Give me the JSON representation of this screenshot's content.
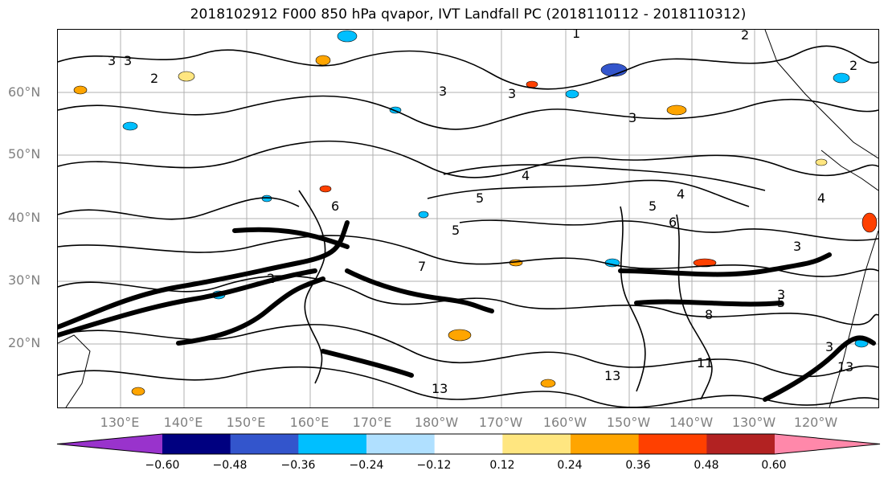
{
  "title": "2018102912 F000 850 hPa qvapor, IVT Landfall PC (2018110112 - 2018110312)",
  "latitude_labels": [
    "60°N",
    "50°N",
    "40°N",
    "30°N",
    "20°N"
  ],
  "longitude_labels": [
    "130°E",
    "140°E",
    "150°E",
    "160°E",
    "170°E",
    "180°W",
    "170°W",
    "160°W",
    "150°W",
    "140°W",
    "130°W",
    "120°W"
  ],
  "contour_labels": [
    "3",
    "3",
    "3",
    "2",
    "1",
    "2",
    "2",
    "3",
    "3",
    "4",
    "5",
    "5",
    "4",
    "4",
    "3",
    "5",
    "7",
    "6",
    "5",
    "8",
    "11",
    "13",
    "13",
    "13",
    "3",
    "2",
    "6",
    "3"
  ],
  "colorbar": {
    "colors": [
      "#9933cc",
      "#000080",
      "#3355cc",
      "#00bfff",
      "#b0e0ff",
      "#ffffff",
      "#ffe680",
      "#ffa500",
      "#ff4000",
      "#b22222",
      "#ff88aa"
    ],
    "tick_labels": [
      "−0.60",
      "−0.48",
      "−0.36",
      "−0.24",
      "−0.12",
      "0.12",
      "0.24",
      "0.36",
      "0.48",
      "0.60"
    ]
  }
}
